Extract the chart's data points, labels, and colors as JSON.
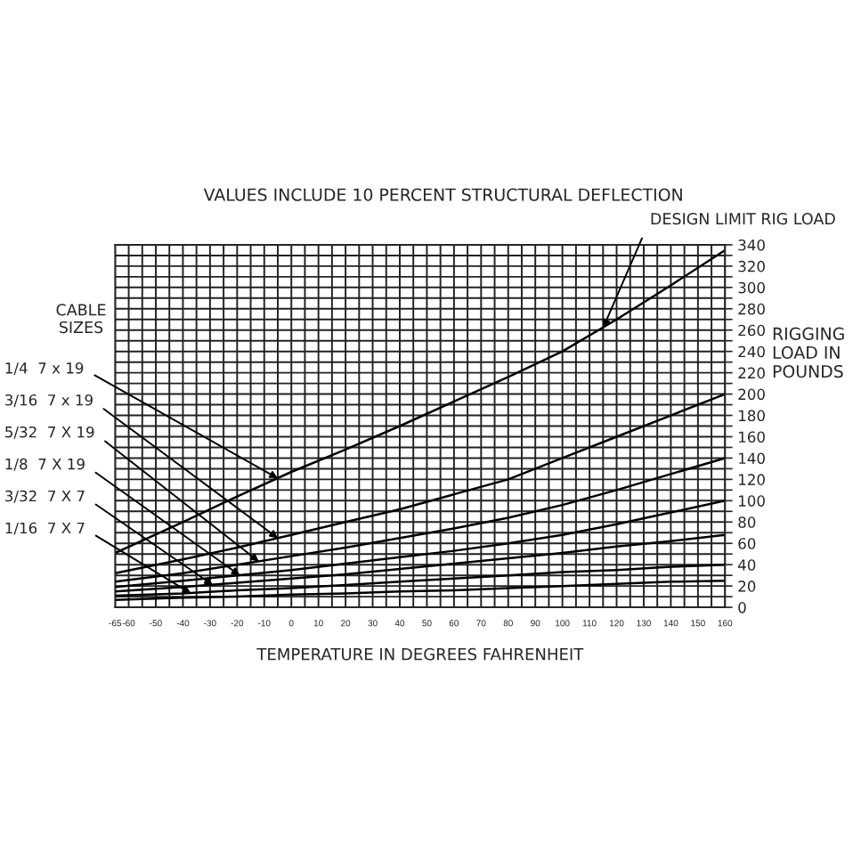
{
  "chart_data": {
    "type": "line",
    "title": "VALUES INCLUDE 10 PERCENT STRUCTURAL DEFLECTION",
    "xlabel": "TEMPERATURE IN DEGREES FAHRENHEIT",
    "ylabel": "RIGGING LOAD IN POUNDS",
    "x": [
      -65,
      -40,
      -20,
      0,
      20,
      40,
      60,
      80,
      100,
      120,
      140,
      160
    ],
    "series": [
      {
        "color": "#000000",
        "values": [
          51,
          80,
          104,
          127,
          148,
          170,
          193,
          216,
          240,
          270,
          302,
          335
        ]
      },
      {
        "color": "#000000",
        "values": [
          32,
          45,
          56,
          68,
          80,
          92,
          106,
          120,
          140,
          160,
          180,
          200
        ]
      },
      {
        "color": "#000000",
        "values": [
          24,
          32,
          40,
          48,
          56,
          65,
          74,
          84,
          96,
          110,
          125,
          140
        ]
      },
      {
        "color": "#000000",
        "values": [
          19,
          25,
          30,
          35,
          41,
          47,
          53,
          60,
          68,
          78,
          89,
          100
        ]
      },
      {
        "color": "#000000",
        "values": [
          15,
          19,
          23,
          27,
          31,
          36,
          41,
          46,
          51,
          57,
          62,
          68
        ]
      },
      {
        "color": "#000000",
        "values": [
          11,
          13,
          16,
          18,
          21,
          24,
          27,
          30,
          33,
          35,
          38,
          40
        ]
      },
      {
        "color": "#000000",
        "values": [
          7,
          9,
          10,
          12,
          13,
          15,
          16,
          18,
          20,
          22,
          24,
          25
        ]
      }
    ],
    "annotations": [
      "CABLE SIZES",
      {
        "text": "1/4  7 x 19",
        "x": -5,
        "y": 121
      },
      {
        "text": "3/16  7 x 19",
        "x": -5,
        "y": 65
      },
      {
        "text": "5/32  7 X 19",
        "x": -12,
        "y": 43
      },
      {
        "text": "1/8  7 X 19",
        "x": -19,
        "y": 30
      },
      {
        "text": "3/32  7 X 7",
        "x": -29,
        "y": 21
      },
      {
        "text": "1/16  7 X 7",
        "x": -37,
        "y": 13
      },
      {
        "text": "DESIGN LIMIT RIG LOAD",
        "x": 115,
        "y": 262
      }
    ],
    "xlim": [
      -65,
      160
    ],
    "ylim": [
      0,
      340
    ],
    "xticks": [
      -65,
      -60,
      {
        "value": -55,
        "label": null
      },
      -50,
      {
        "value": -45,
        "label": null
      },
      -40,
      {
        "value": -35,
        "label": null
      },
      -30,
      {
        "value": -25,
        "label": null
      },
      -20,
      {
        "value": -15,
        "label": null
      },
      -10,
      {
        "value": -5,
        "label": null
      },
      0,
      {
        "value": 5,
        "label": null
      },
      10,
      {
        "value": 15,
        "label": null
      },
      20,
      {
        "value": 25,
        "label": null
      },
      30,
      {
        "value": 35,
        "label": null
      },
      40,
      {
        "value": 45,
        "label": null
      },
      50,
      {
        "value": 55,
        "label": null
      },
      60,
      {
        "value": 65,
        "label": null
      },
      70,
      {
        "value": 75,
        "label": null
      },
      80,
      {
        "value": 85,
        "label": null
      },
      90,
      {
        "value": 95,
        "label": null
      },
      100,
      {
        "value": 105,
        "label": null
      },
      110,
      {
        "value": 115,
        "label": null
      },
      120,
      {
        "value": 125,
        "label": null
      },
      130,
      {
        "value": 135,
        "label": null
      },
      140,
      {
        "value": 145,
        "label": null
      },
      150,
      {
        "value": 155,
        "label": null
      },
      160
    ],
    "yticks": [
      0,
      {
        "value": 10,
        "label": null
      },
      20,
      {
        "value": 30,
        "label": null
      },
      40,
      {
        "value": 50,
        "label": null
      },
      60,
      {
        "value": 70,
        "label": null
      },
      80,
      {
        "value": 90,
        "label": null
      },
      100,
      {
        "value": 110,
        "label": null
      },
      120,
      {
        "value": 130,
        "label": null
      },
      140,
      {
        "value": 150,
        "label": null
      },
      160,
      {
        "value": 170,
        "label": null
      },
      180,
      {
        "value": 190,
        "label": null
      },
      200,
      {
        "value": 210,
        "label": null
      },
      220,
      {
        "value": 230,
        "label": null
      },
      240,
      {
        "value": 250,
        "label": null
      },
      260,
      {
        "value": 270,
        "label": null
      },
      280,
      {
        "value": 290,
        "label": null
      },
      300,
      {
        "value": 310,
        "label": null
      },
      320,
      {
        "value": 330,
        "label": null
      },
      340
    ],
    "grid": true,
    "legend": false,
    "marker": "none",
    "line_style": "solid"
  }
}
